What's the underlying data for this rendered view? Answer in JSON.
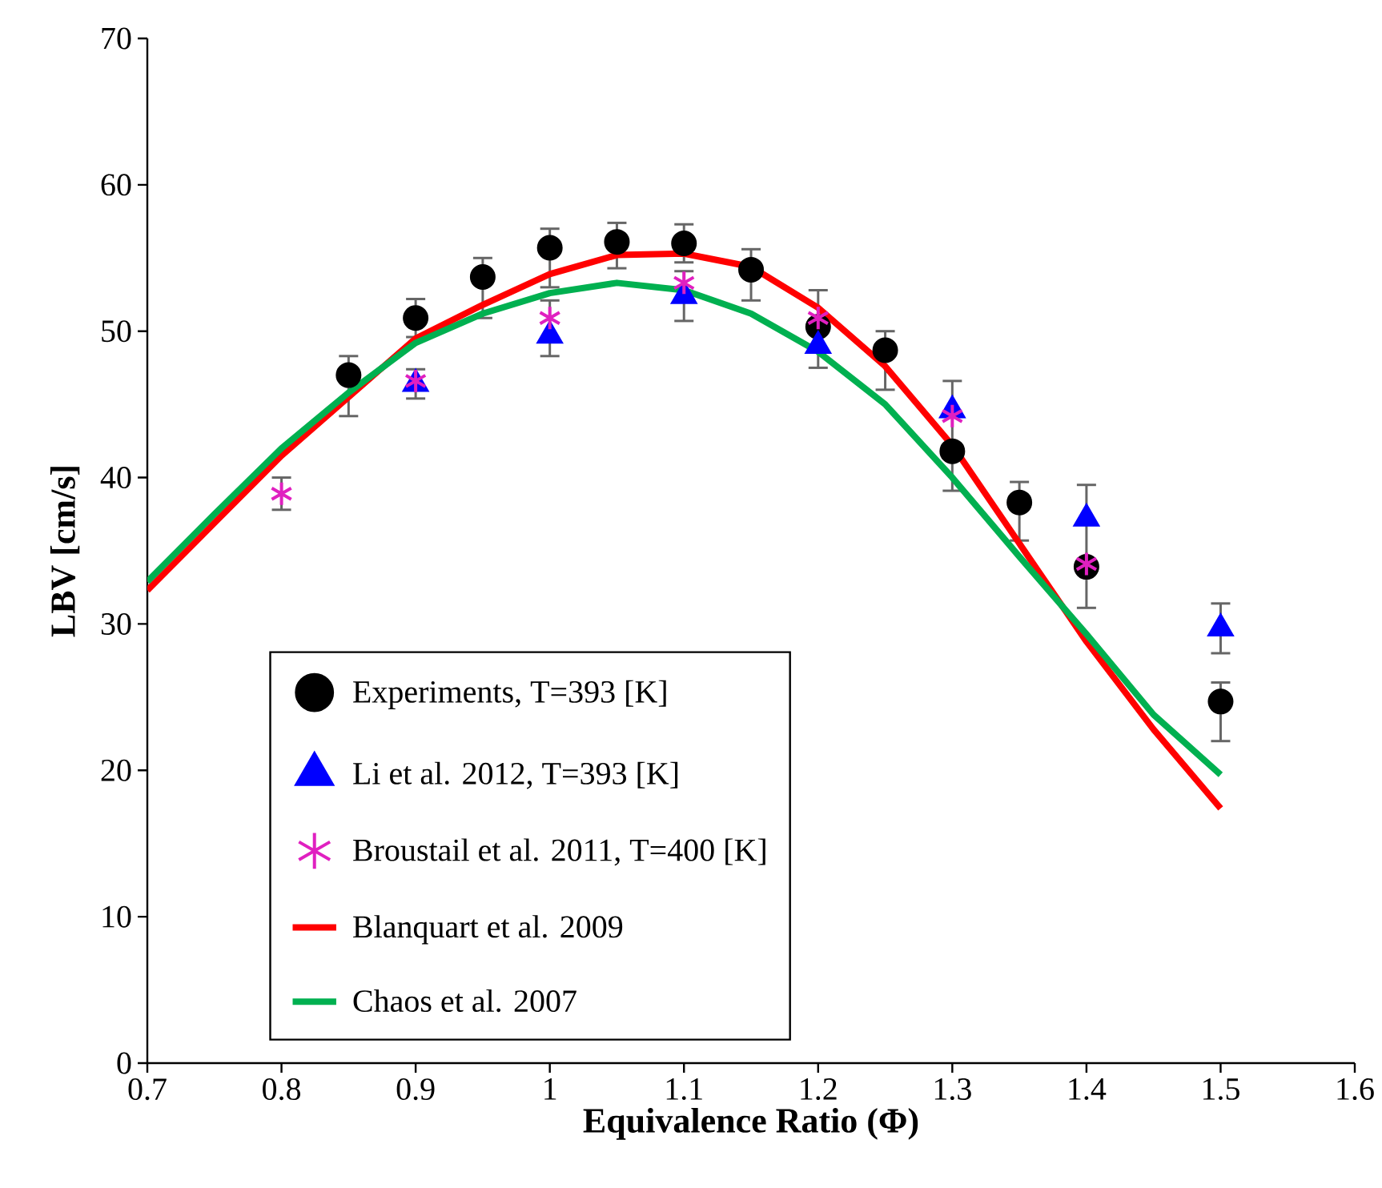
{
  "chart_data": {
    "type": "scatter",
    "xlabel": "Equivalence Ratio (Φ)",
    "ylabel": "LBV  [cm/s]",
    "xlim": [
      0.7,
      1.6
    ],
    "ylim": [
      0,
      70
    ],
    "xticks": [
      0.7,
      0.8,
      0.9,
      1,
      1.1,
      1.2,
      1.3,
      1.4,
      1.5,
      1.6
    ],
    "yticks": [
      0,
      10,
      20,
      30,
      40,
      50,
      60,
      70
    ],
    "grid": false,
    "legend": "bottom left",
    "series": [
      {
        "name": "Experiments, T=393 [K]",
        "type": "scatter",
        "marker": "circle",
        "color": "#000000",
        "x": [
          0.85,
          0.9,
          0.95,
          1.0,
          1.05,
          1.1,
          1.15,
          1.2,
          1.25,
          1.3,
          1.35,
          1.4,
          1.5
        ],
        "values": [
          47.0,
          50.9,
          53.7,
          55.7,
          56.1,
          56.0,
          54.2,
          50.3,
          48.7,
          41.8,
          38.3,
          33.9,
          24.7
        ],
        "errors": [
          [
            44.2,
            48.3
          ],
          1.3,
          [
            50.9,
            55.0
          ],
          [
            53.0,
            57.0
          ],
          [
            54.3,
            57.4
          ],
          [
            54.7,
            57.3
          ],
          [
            52.1,
            55.6
          ],
          [
            47.5,
            52.8
          ],
          [
            46.0,
            50.0
          ],
          [
            39.1,
            46.6
          ],
          [
            35.7,
            39.7
          ],
          [
            31.1,
            39.5
          ],
          [
            22.0,
            26.0
          ]
        ]
      },
      {
        "name": "Li et al. 2012, T=393 [K]",
        "type": "scatter",
        "marker": "triangle",
        "color": "#0000ff",
        "x": [
          0.9,
          1.0,
          1.1,
          1.2,
          1.3,
          1.4,
          1.5
        ],
        "values": [
          46.4,
          49.7,
          52.4,
          49.0,
          44.6,
          37.2,
          29.7
        ],
        "errors": [
          null,
          null,
          [
            50.7,
            54.1
          ],
          null,
          null,
          null,
          1.7
        ]
      },
      {
        "name": "Broustail et al. 2011, T=400 [K]",
        "type": "scatter",
        "marker": "cross",
        "color": "#e020c0",
        "x": [
          0.8,
          0.9,
          1.0,
          1.1,
          1.2,
          1.3,
          1.4
        ],
        "values": [
          38.9,
          46.6,
          50.9,
          53.3,
          50.9,
          44.2,
          34.1
        ],
        "errors": [
          1.1,
          [
            45.4,
            47.4
          ],
          [
            48.3,
            52.1
          ],
          null,
          null,
          null,
          null
        ]
      },
      {
        "name": "Blanquart et al. 2009",
        "type": "line",
        "marker": "none",
        "color": "#ff0000",
        "x": [
          0.7,
          0.75,
          0.8,
          0.85,
          0.9,
          0.95,
          1.0,
          1.05,
          1.1,
          1.15,
          1.2,
          1.25,
          1.3,
          1.35,
          1.4,
          1.45,
          1.5
        ],
        "values": [
          32.3,
          36.9,
          41.5,
          45.5,
          49.5,
          51.8,
          53.9,
          55.2,
          55.3,
          54.4,
          51.6,
          47.6,
          42.2,
          35.5,
          28.8,
          22.8,
          17.4
        ]
      },
      {
        "name": "Chaos et al. 2007",
        "type": "line",
        "marker": "none",
        "color": "#00b050",
        "x": [
          0.7,
          0.75,
          0.8,
          0.85,
          0.9,
          0.95,
          1.0,
          1.05,
          1.1,
          1.15,
          1.2,
          1.25,
          1.3,
          1.35,
          1.4,
          1.45,
          1.5
        ],
        "values": [
          32.9,
          37.5,
          42.0,
          45.8,
          49.2,
          51.2,
          52.6,
          53.3,
          52.8,
          51.2,
          48.6,
          45.0,
          40.0,
          34.6,
          29.3,
          23.8,
          19.7
        ]
      }
    ]
  }
}
